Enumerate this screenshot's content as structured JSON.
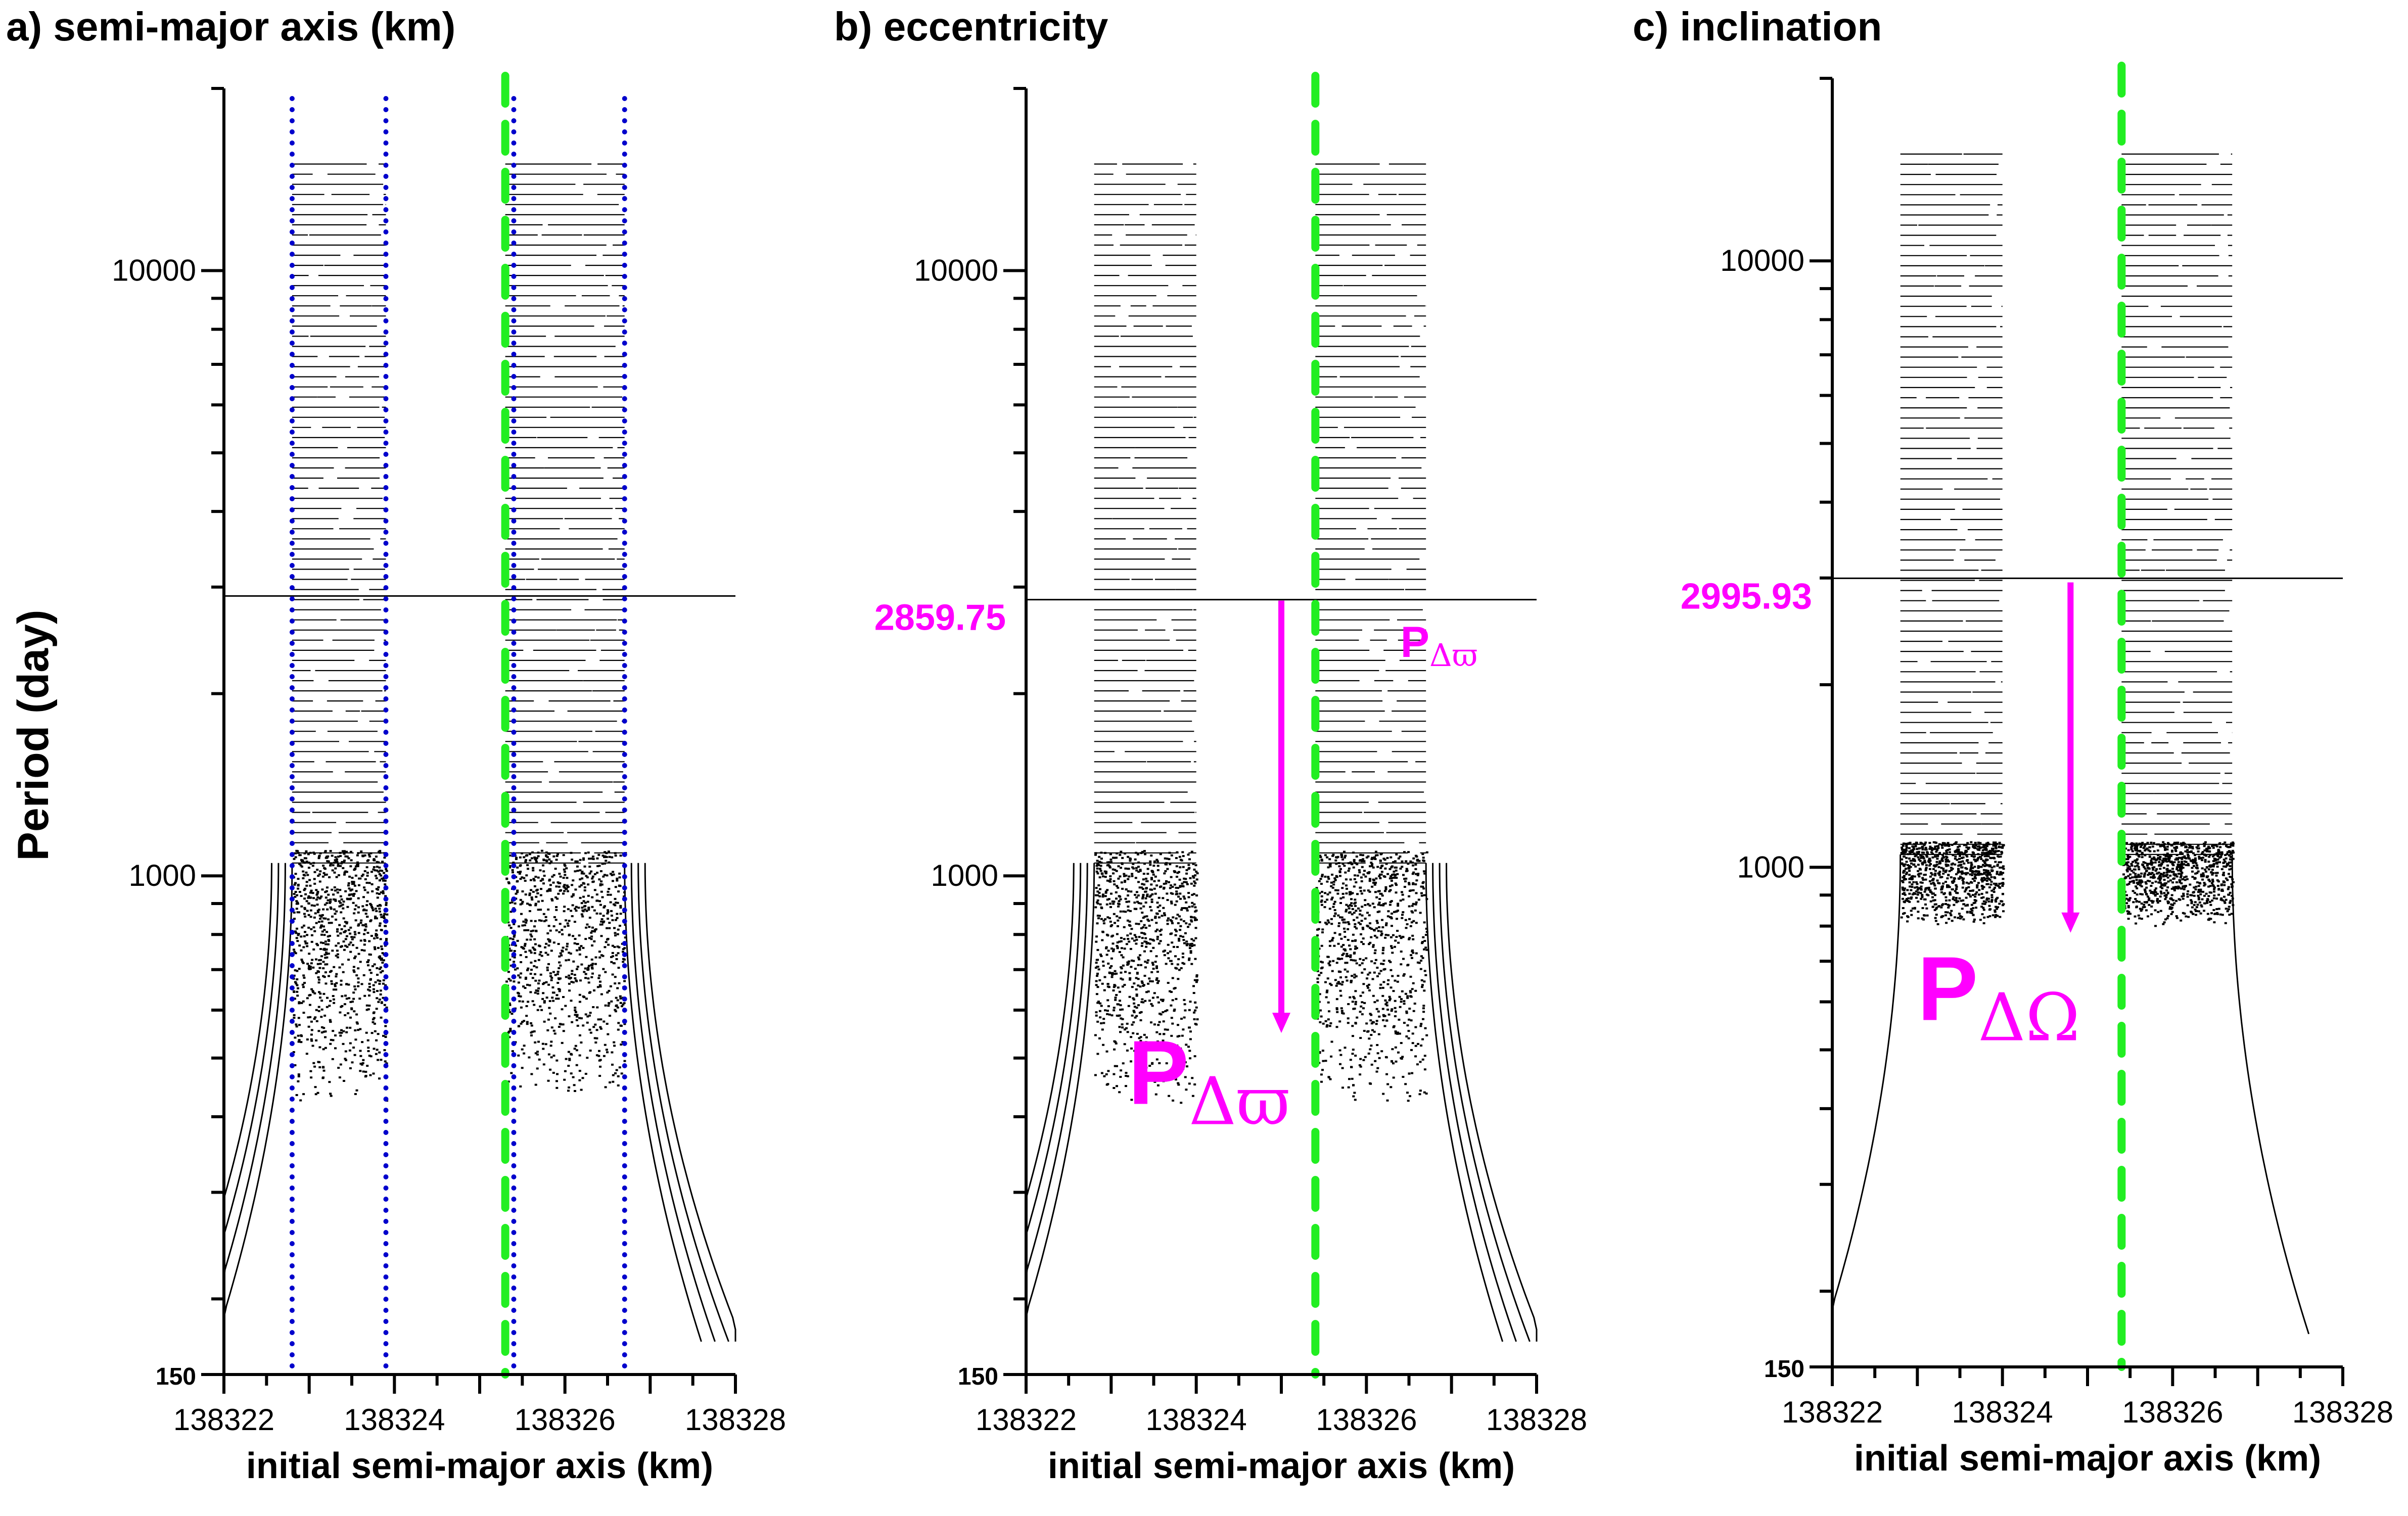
{
  "colors": {
    "data": "#000000",
    "guide_dotted": "#0000cc",
    "guide_dashed": "#22ee22",
    "annotation": "#ff00ff"
  },
  "chart_data": [
    {
      "type": "scatter",
      "title": "a) semi-major axis (km)",
      "xlabel": "initial semi-major axis (km)",
      "ylabel": "Period (day)",
      "xlim": [
        138322,
        138328
      ],
      "ylim": [
        150,
        20000
      ],
      "yscale": "log",
      "xticks": [
        138322,
        138324,
        138326,
        138328
      ],
      "xtick_labels": [
        "138322",
        "138324",
        "138326",
        "138328"
      ],
      "yticks": [
        150,
        1000,
        10000
      ],
      "ytick_labels": [
        "150",
        "1000",
        "10000"
      ],
      "vlines_dotted": [
        138322.8,
        138323.9,
        138325.4,
        138326.7
      ],
      "vline_dashed": 138325.3,
      "hlines": [
        {
          "period": 2900,
          "x_from": 138322,
          "x_to": 138328
        }
      ],
      "cluster_left": [
        138322.8,
        138323.9
      ],
      "cluster_right": [
        138325.3,
        138326.7
      ]
    },
    {
      "type": "scatter",
      "title": "b) eccentricity",
      "xlabel": "initial semi-major axis (km)",
      "xlim": [
        138322,
        138328
      ],
      "ylim": [
        150,
        20000
      ],
      "yscale": "log",
      "xticks": [
        138322,
        138324,
        138326,
        138328
      ],
      "xtick_labels": [
        "138322",
        "138324",
        "138326",
        "138328"
      ],
      "yticks": [
        150,
        1000,
        10000
      ],
      "ytick_labels": [
        "150",
        "1000",
        "10000"
      ],
      "vline_dashed": 138325.4,
      "marked_period": 2859.75,
      "marked_period_label": "2859.75",
      "arrow": {
        "x": 138325.0,
        "from": 2850,
        "to": 550
      },
      "annotations": [
        {
          "text_main": "P",
          "text_sub": "Δϖ",
          "x": 138326.4,
          "period": 2300,
          "size": "small"
        },
        {
          "text_main": "P",
          "text_sub": "Δϖ",
          "x": 138323.2,
          "period": 420,
          "size": "large"
        }
      ],
      "cluster_left": [
        138322.8,
        138324.0
      ],
      "cluster_right": [
        138325.4,
        138326.7
      ]
    },
    {
      "type": "scatter",
      "title": "c) inclination",
      "xlabel": "initial semi-major axis (km)",
      "xlim": [
        138322,
        138328
      ],
      "ylim": [
        150,
        20000
      ],
      "yscale": "log",
      "xticks": [
        138322,
        138324,
        138326,
        138328
      ],
      "xtick_labels": [
        "138322",
        "138324",
        "138326",
        "138328"
      ],
      "yticks": [
        150,
        1000,
        10000
      ],
      "ytick_labels": [
        "150",
        "1000",
        "10000"
      ],
      "vline_dashed": 138325.4,
      "marked_period": 2995.93,
      "marked_period_label": "2995.93",
      "arrow": {
        "x": 138324.8,
        "from": 2950,
        "to": 780
      },
      "annotations": [
        {
          "text_main": "P",
          "text_sub": "ΔΩ",
          "x": 138323.0,
          "period": 560,
          "size": "large"
        }
      ],
      "cluster_left": [
        138322.8,
        138324.0
      ],
      "cluster_right": [
        138325.4,
        138326.7
      ]
    }
  ]
}
